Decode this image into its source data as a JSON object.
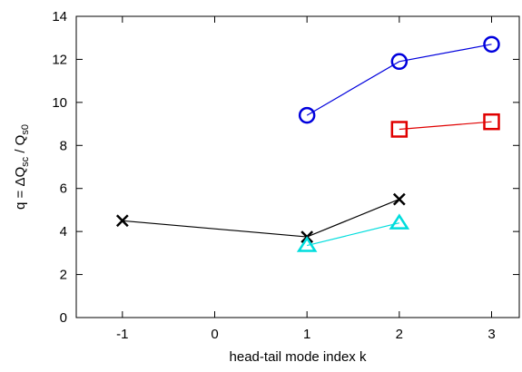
{
  "chart_data": {
    "type": "line",
    "xlabel": "head-tail mode index k",
    "ylabel": [
      "q = ΔQ",
      "sc",
      " / Q",
      "s0"
    ],
    "xlim": [
      -1.5,
      3.3
    ],
    "xticks": [
      -1,
      0,
      1,
      2,
      3
    ],
    "ylim": [
      0,
      14
    ],
    "yticks": [
      0,
      2,
      4,
      6,
      8,
      10,
      12,
      14
    ],
    "series": [
      {
        "color": "#0000dd",
        "marker": "circle",
        "x": [
          1,
          2,
          3
        ],
        "values": [
          9.4,
          11.9,
          12.7
        ]
      },
      {
        "color": "#e00000",
        "marker": "square",
        "x": [
          2,
          3
        ],
        "values": [
          8.75,
          9.1
        ]
      },
      {
        "color": "#000000",
        "marker": "cross",
        "x": [
          -1,
          1,
          2
        ],
        "values": [
          4.5,
          3.75,
          5.5
        ]
      },
      {
        "color": "#00dddd",
        "marker": "triangle",
        "x": [
          1,
          2
        ],
        "values": [
          3.35,
          4.4
        ]
      }
    ]
  }
}
